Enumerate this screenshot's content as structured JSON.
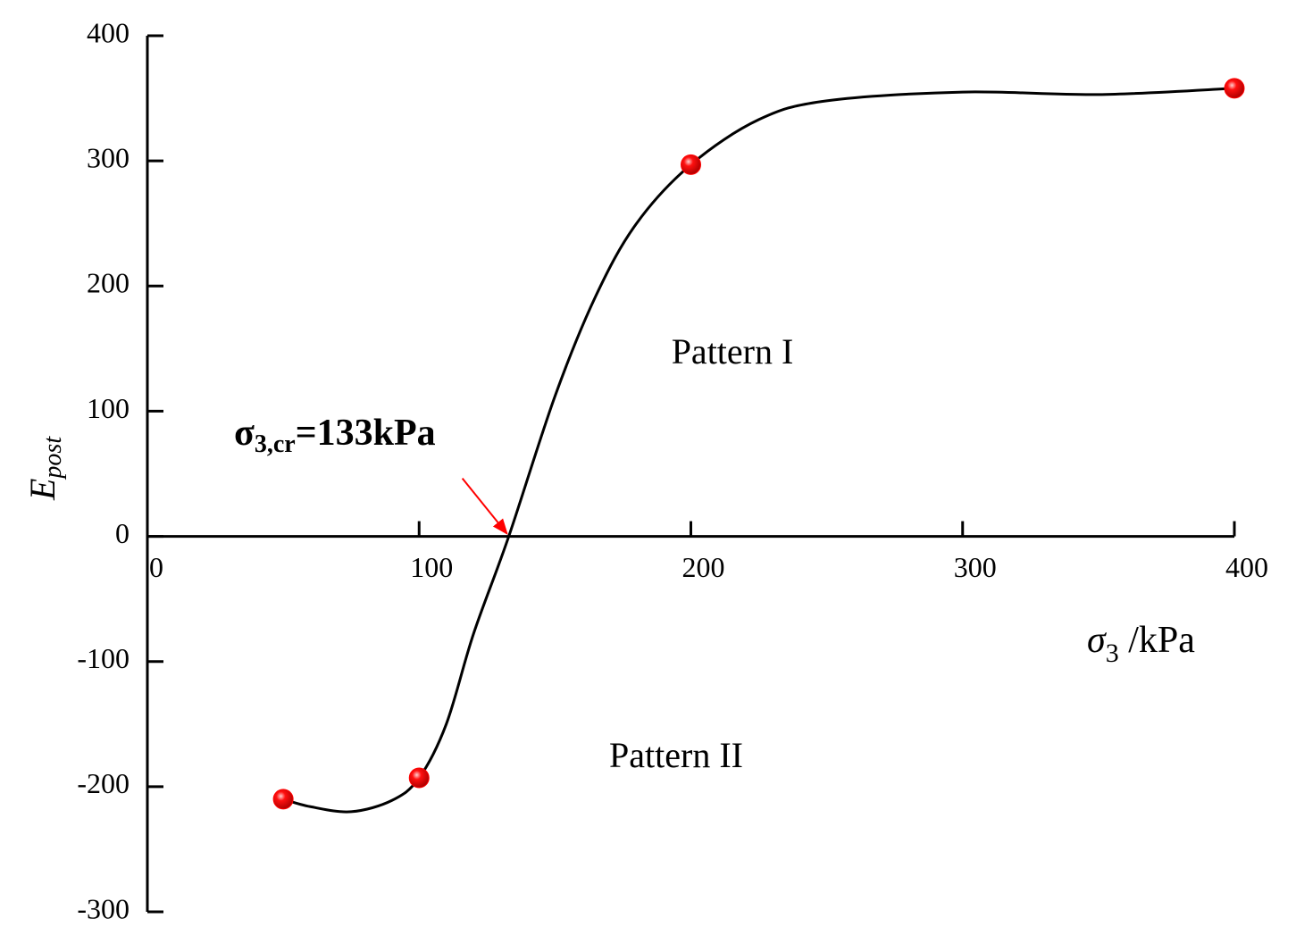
{
  "chart_data": {
    "type": "line",
    "xlabel": {
      "symbol": "σ",
      "subscript": "3",
      "text": " /kPa"
    },
    "ylabel": {
      "symbol": "E",
      "subscript": "post"
    },
    "xlim": [
      0,
      400
    ],
    "xticks": [
      0,
      100,
      200,
      300,
      400
    ],
    "ylim": [
      -300,
      400
    ],
    "yticks": [
      -300,
      -200,
      -100,
      0,
      100,
      200,
      300,
      400
    ],
    "series": [
      {
        "color": "#ff0000",
        "marker": "circle",
        "x": [
          50,
          100,
          200,
          400
        ],
        "values": [
          -210,
          -193,
          297,
          358
        ]
      },
      {
        "color": "#000000",
        "marker": "none",
        "x": [
          50,
          60,
          75,
          90,
          100,
          110,
          120,
          133,
          150,
          165,
          180,
          200,
          225,
          250,
          300,
          350,
          400
        ],
        "values": [
          -210,
          -216,
          -220,
          -211,
          -193,
          -150,
          -78,
          0,
          112,
          192,
          250,
          297,
          333,
          348,
          355,
          353,
          358
        ]
      }
    ],
    "annotations": [
      {
        "symbol": "σ",
        "subscript": "3,cr",
        "text": "=133kPa",
        "x": 133,
        "y": 0,
        "color": "#ff0000"
      },
      {
        "text": "Pattern I"
      },
      {
        "text": "Pattern II"
      }
    ]
  }
}
